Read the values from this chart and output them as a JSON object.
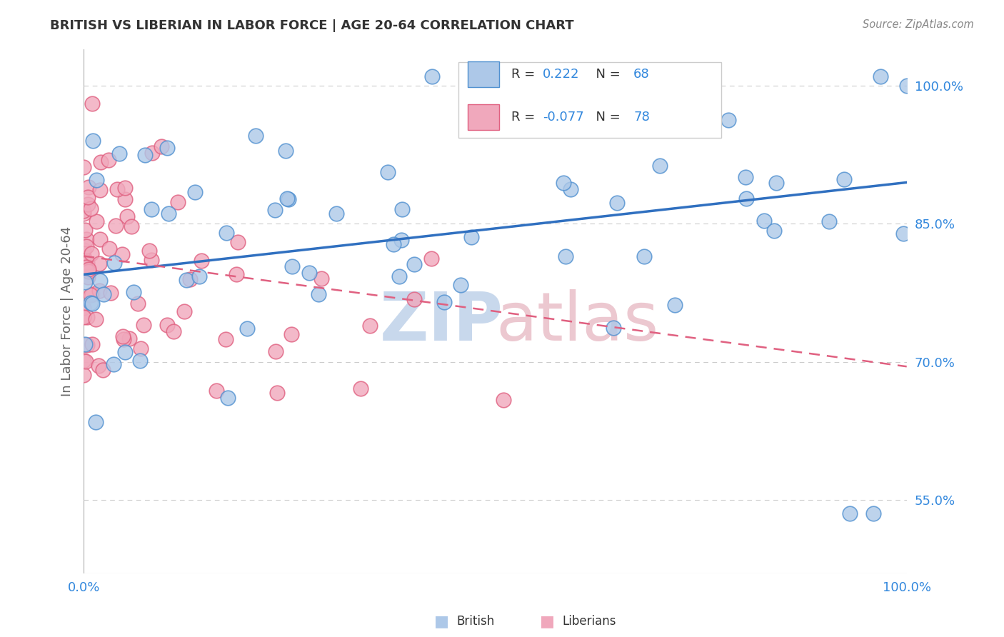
{
  "title": "BRITISH VS LIBERIAN IN LABOR FORCE | AGE 20-64 CORRELATION CHART",
  "source_text": "Source: ZipAtlas.com",
  "ylabel": "In Labor Force | Age 20-64",
  "xlim": [
    0.0,
    1.0
  ],
  "ylim": [
    0.47,
    1.04
  ],
  "yticks": [
    0.55,
    0.7,
    0.85,
    1.0
  ],
  "ytick_labels": [
    "55.0%",
    "70.0%",
    "85.0%",
    "100.0%"
  ],
  "xtick_labels": [
    "0.0%",
    "100.0%"
  ],
  "xticks": [
    0.0,
    1.0
  ],
  "british_R": 0.222,
  "british_N": 68,
  "liberian_R": -0.077,
  "liberian_N": 78,
  "british_color": "#adc8e8",
  "liberian_color": "#f0a8bc",
  "british_edge_color": "#5090d0",
  "liberian_edge_color": "#e06080",
  "british_line_color": "#3070c0",
  "liberian_line_color": "#e06080",
  "brit_line_y0": 0.795,
  "brit_line_y1": 0.895,
  "lib_line_y0": 0.815,
  "lib_line_y1": 0.695,
  "grid_color": "#cccccc",
  "background_color": "#ffffff",
  "title_color": "#333333",
  "axis_label_color": "#666666",
  "source_color": "#888888",
  "watermark_zip_color": "#c8d8ec",
  "watermark_atlas_color": "#ecc8d0",
  "legend_text_color": "#333333",
  "legend_value_color": "#3388dd"
}
